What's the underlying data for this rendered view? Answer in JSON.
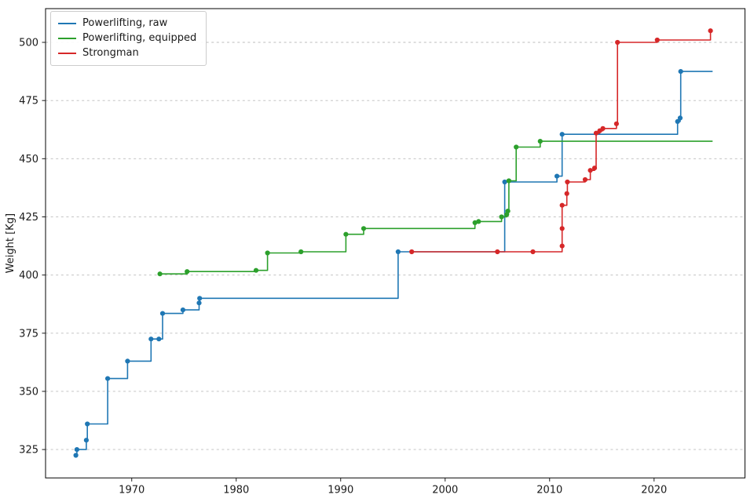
{
  "chart_data": {
    "type": "line",
    "subtype": "step-post",
    "title": "",
    "xlabel": "",
    "ylabel": "Weight [Kg]",
    "grid": "horizontal-dashed",
    "legend_position": "upper-left",
    "xlim": [
      1961.75,
      2028.7
    ],
    "ylim": [
      312.8,
      514.5
    ],
    "x_ticks": [
      1970,
      1980,
      1990,
      2000,
      2010,
      2020
    ],
    "y_ticks": [
      325,
      350,
      375,
      400,
      425,
      450,
      475,
      500
    ],
    "line_end_x": 2025.6,
    "axis_color": "#1a1a1a",
    "grid_color": "#bcbcbc",
    "series": [
      {
        "name": "Powerlifting, raw",
        "color": "#1f77b4",
        "points": [
          [
            1964.65,
            322.5
          ],
          [
            1964.75,
            325
          ],
          [
            1965.65,
            329
          ],
          [
            1965.75,
            336
          ],
          [
            1967.7,
            355.5
          ],
          [
            1969.6,
            363
          ],
          [
            1971.85,
            372.5
          ],
          [
            1972.6,
            372.5
          ],
          [
            1972.95,
            383.5
          ],
          [
            1974.9,
            385
          ],
          [
            1976.45,
            388
          ],
          [
            1976.5,
            390
          ],
          [
            1995.5,
            410
          ],
          [
            2005.7,
            440
          ],
          [
            2010.7,
            442.5
          ],
          [
            2011.2,
            460.5
          ],
          [
            2022.25,
            466
          ],
          [
            2022.5,
            467.5
          ],
          [
            2022.55,
            487.5
          ]
        ]
      },
      {
        "name": "Powerlifting, equipped",
        "color": "#2ca02c",
        "points": [
          [
            1972.7,
            400.5
          ],
          [
            1975.3,
            401.5
          ],
          [
            1981.9,
            402
          ],
          [
            1983.0,
            409.5
          ],
          [
            1986.2,
            410
          ],
          [
            1990.5,
            417.5
          ],
          [
            1992.2,
            420
          ],
          [
            2002.85,
            422.5
          ],
          [
            2003.2,
            423
          ],
          [
            2005.4,
            425
          ],
          [
            2005.9,
            426
          ],
          [
            2006.0,
            427.5
          ],
          [
            2006.1,
            440.5
          ],
          [
            2006.8,
            455
          ],
          [
            2009.1,
            457.5
          ]
        ]
      },
      {
        "name": "Strongman",
        "color": "#d62728",
        "points": [
          [
            1996.8,
            410
          ],
          [
            2005.0,
            410
          ],
          [
            2008.4,
            410
          ],
          [
            2011.2,
            412.5
          ],
          [
            2011.2,
            420
          ],
          [
            2011.2,
            430
          ],
          [
            2011.65,
            435
          ],
          [
            2011.7,
            440
          ],
          [
            2013.4,
            441
          ],
          [
            2013.9,
            445
          ],
          [
            2014.3,
            446
          ],
          [
            2014.45,
            461
          ],
          [
            2014.8,
            462
          ],
          [
            2015.1,
            463
          ],
          [
            2016.4,
            465
          ],
          [
            2016.5,
            500
          ],
          [
            2020.3,
            501
          ],
          [
            2025.4,
            505
          ]
        ]
      }
    ]
  }
}
